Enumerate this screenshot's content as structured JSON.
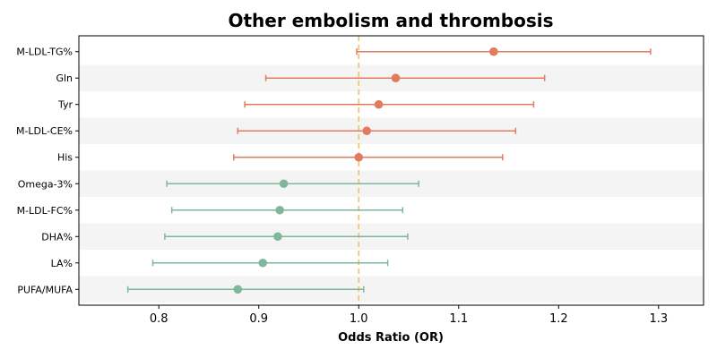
{
  "chart_data": {
    "type": "forest",
    "title": "Other embolism and thrombosis",
    "xlabel": "Odds Ratio (OR)",
    "ylabel": "",
    "xlim": [
      0.72,
      1.345
    ],
    "xticks": [
      0.8,
      0.9,
      1.0,
      1.1,
      1.2,
      1.3
    ],
    "xtick_labels": [
      "0.8",
      "0.9",
      "1.0",
      "1.1",
      "1.2",
      "1.3"
    ],
    "reference_line": 1.0,
    "grid": false,
    "colors": {
      "risk": "#e07b5f",
      "protective": "#7fb79d",
      "reference": "#f0c674",
      "band": "#f4f4f4"
    },
    "rows": [
      {
        "label": "M-LDL-TG%",
        "or": 1.135,
        "lower": 0.998,
        "upper": 1.292,
        "group": "risk"
      },
      {
        "label": "Gln",
        "or": 1.037,
        "lower": 0.907,
        "upper": 1.186,
        "group": "risk"
      },
      {
        "label": "Tyr",
        "or": 1.02,
        "lower": 0.886,
        "upper": 1.175,
        "group": "risk"
      },
      {
        "label": "M-LDL-CE%",
        "or": 1.008,
        "lower": 0.879,
        "upper": 1.157,
        "group": "risk"
      },
      {
        "label": "His",
        "or": 1.0,
        "lower": 0.875,
        "upper": 1.144,
        "group": "risk"
      },
      {
        "label": "Omega-3%",
        "or": 0.925,
        "lower": 0.808,
        "upper": 1.06,
        "group": "protective"
      },
      {
        "label": "M-LDL-FC%",
        "or": 0.921,
        "lower": 0.813,
        "upper": 1.044,
        "group": "protective"
      },
      {
        "label": "DHA%",
        "or": 0.919,
        "lower": 0.806,
        "upper": 1.049,
        "group": "protective"
      },
      {
        "label": "LA%",
        "or": 0.904,
        "lower": 0.794,
        "upper": 1.029,
        "group": "protective"
      },
      {
        "label": "PUFA/MUFA",
        "or": 0.879,
        "lower": 0.769,
        "upper": 1.005,
        "group": "protective"
      }
    ]
  }
}
